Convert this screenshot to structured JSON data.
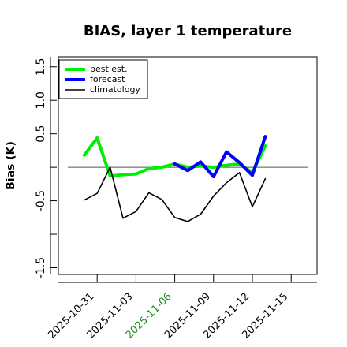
{
  "chart_data": {
    "type": "line",
    "title": "BIAS, layer 1 temperature",
    "xlabel": "",
    "ylabel": "Bias (K)",
    "x_type": "date",
    "xlim": [
      "2025-10-28",
      "2025-11-17"
    ],
    "ylim": [
      -1.6,
      1.65
    ],
    "y_ticks": [
      -1.5,
      -1.0,
      -0.5,
      0.0,
      0.5,
      1.0,
      1.5
    ],
    "y_tick_labels": [
      "-1.5",
      "",
      "-0.5",
      "",
      "0.5",
      "1.0",
      "1.5"
    ],
    "x_ticks": [
      "2025-10-31",
      "2025-11-03",
      "2025-11-06",
      "2025-11-09",
      "2025-11-12",
      "2025-11-15"
    ],
    "x_tick_labels": [
      "2025-10-31",
      "2025-11-03",
      "2025-11-06",
      "2025-11-09",
      "2025-11-12",
      "2025-11-15"
    ],
    "highlight_tick": "2025-11-06",
    "highlight_color": "#228b22",
    "zero_line": 0,
    "grid": false,
    "legend_position": "top-left",
    "series": [
      {
        "name": "best est.",
        "color": "#00ee00",
        "style": "thick",
        "x": [
          "2025-10-30",
          "2025-10-31",
          "2025-11-01",
          "2025-11-02",
          "2025-11-03",
          "2025-11-04",
          "2025-11-05",
          "2025-11-06",
          "2025-11-07",
          "2025-11-08",
          "2025-11-09",
          "2025-11-10",
          "2025-11-11",
          "2025-11-12",
          "2025-11-13"
        ],
        "values": [
          0.18,
          0.44,
          -0.13,
          -0.11,
          -0.1,
          -0.02,
          0.0,
          0.05,
          0.0,
          0.02,
          0.0,
          0.03,
          0.05,
          -0.08,
          0.32
        ]
      },
      {
        "name": "forecast",
        "color": "#0000ff",
        "style": "thick",
        "x": [
          "2025-11-06",
          "2025-11-07",
          "2025-11-08",
          "2025-11-09",
          "2025-11-10",
          "2025-11-11",
          "2025-11-12",
          "2025-11-13"
        ],
        "values": [
          0.05,
          -0.05,
          0.08,
          -0.14,
          0.23,
          0.07,
          -0.12,
          0.46
        ]
      },
      {
        "name": "climatology",
        "color": "#000000",
        "style": "thin",
        "x": [
          "2025-10-30",
          "2025-10-31",
          "2025-11-01",
          "2025-11-02",
          "2025-11-03",
          "2025-11-04",
          "2025-11-05",
          "2025-11-06",
          "2025-11-07",
          "2025-11-08",
          "2025-11-09",
          "2025-11-10",
          "2025-11-11",
          "2025-11-12",
          "2025-11-13"
        ],
        "values": [
          -0.49,
          -0.39,
          0.0,
          -0.76,
          -0.66,
          -0.38,
          -0.48,
          -0.75,
          -0.81,
          -0.7,
          -0.43,
          -0.23,
          -0.08,
          -0.59,
          -0.17
        ]
      }
    ]
  }
}
